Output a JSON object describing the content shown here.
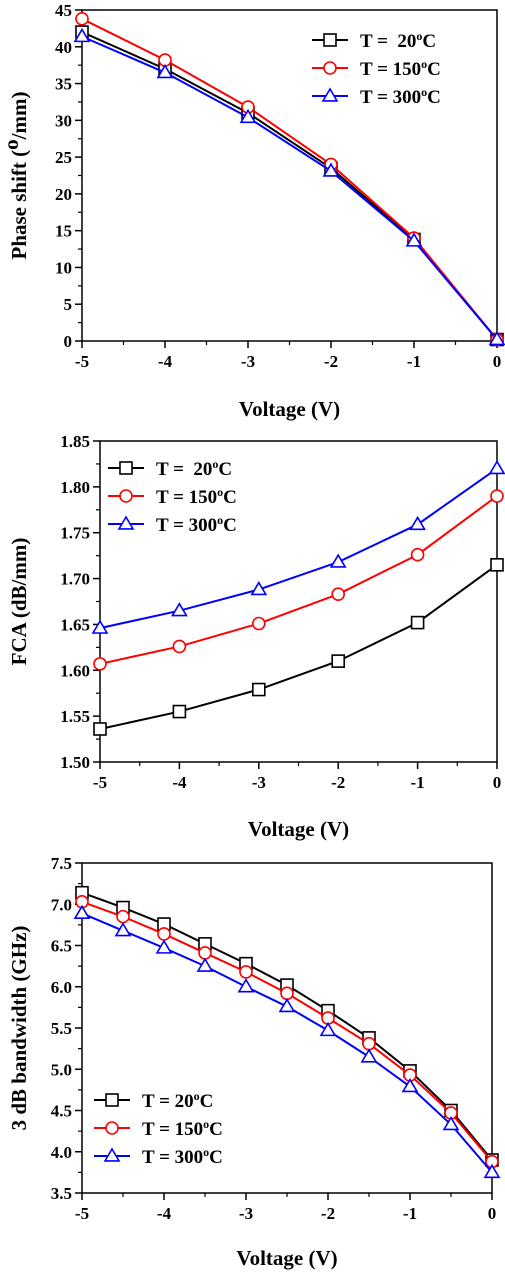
{
  "chart_data": [
    {
      "type": "line",
      "xlabel": "Voltage (V)",
      "ylabel_main": "Phase shift (",
      "ylabel_sup": "o",
      "ylabel_tail": "/mm)",
      "xlim": [
        -5,
        0
      ],
      "ylim": [
        0,
        45
      ],
      "xticks": [
        -5,
        -4,
        -3,
        -2,
        -1,
        0
      ],
      "yticks": [
        0,
        5,
        10,
        15,
        20,
        25,
        30,
        35,
        40,
        45
      ],
      "ytick_decimals": 0,
      "legend_position": "top-right",
      "x": [
        -5,
        -4,
        -3,
        -2,
        -1,
        0
      ],
      "series": [
        {
          "name_main": "T =  20",
          "name_sup": "o",
          "name_tail": "C",
          "color": "#000000",
          "marker": "square",
          "values": [
            42.0,
            37.0,
            31.0,
            23.5,
            13.8,
            0.2
          ]
        },
        {
          "name_main": "T = 150",
          "name_sup": "o",
          "name_tail": "C",
          "color": "#ff0000",
          "marker": "circle",
          "values": [
            43.8,
            38.2,
            31.8,
            24.0,
            14.0,
            0.2
          ]
        },
        {
          "name_main": "T = 300",
          "name_sup": "o",
          "name_tail": "C",
          "color": "#0000ff",
          "marker": "triangle",
          "values": [
            41.4,
            36.5,
            30.4,
            23.1,
            13.6,
            0.2
          ]
        }
      ]
    },
    {
      "type": "line",
      "xlabel": "Voltage (V)",
      "ylabel_main": "FCA (dB/mm)",
      "ylabel_sup": "",
      "ylabel_tail": "",
      "xlim": [
        -5,
        0
      ],
      "ylim": [
        1.5,
        1.85
      ],
      "xticks": [
        -5,
        -4,
        -3,
        -2,
        -1,
        0
      ],
      "yticks": [
        1.5,
        1.55,
        1.6,
        1.65,
        1.7,
        1.75,
        1.8,
        1.85
      ],
      "ytick_decimals": 2,
      "legend_position": "top-left",
      "x": [
        -5,
        -4,
        -3,
        -2,
        -1,
        0
      ],
      "series": [
        {
          "name_main": "T =  20",
          "name_sup": "o",
          "name_tail": "C",
          "color": "#000000",
          "marker": "square",
          "values": [
            1.536,
            1.555,
            1.579,
            1.61,
            1.652,
            1.715
          ]
        },
        {
          "name_main": "T = 150",
          "name_sup": "o",
          "name_tail": "C",
          "color": "#ff0000",
          "marker": "circle",
          "values": [
            1.607,
            1.626,
            1.651,
            1.683,
            1.726,
            1.79
          ]
        },
        {
          "name_main": "T = 300",
          "name_sup": "o",
          "name_tail": "C",
          "color": "#0000ff",
          "marker": "triangle",
          "values": [
            1.646,
            1.665,
            1.688,
            1.718,
            1.759,
            1.82
          ]
        }
      ]
    },
    {
      "type": "line",
      "xlabel": "Voltage (V)",
      "ylabel_main": "3 dB bandwidth (GHz)",
      "ylabel_sup": "",
      "ylabel_tail": "",
      "xlim": [
        -5,
        0
      ],
      "ylim": [
        3.5,
        7.5
      ],
      "xticks": [
        -5,
        -4,
        -3,
        -2,
        -1,
        0
      ],
      "yticks": [
        3.5,
        4.0,
        4.5,
        5.0,
        5.5,
        6.0,
        6.5,
        7.0,
        7.5
      ],
      "ytick_decimals": 1,
      "legend_position": "bottom-left",
      "x": [
        -5,
        -4.5,
        -4,
        -3.5,
        -3,
        -2.5,
        -2,
        -1.5,
        -1,
        -0.5,
        0
      ],
      "series": [
        {
          "name_main": "T = 20",
          "name_sup": "o",
          "name_tail": "C",
          "color": "#000000",
          "marker": "square",
          "values": [
            7.14,
            6.96,
            6.76,
            6.52,
            6.28,
            6.02,
            5.71,
            5.38,
            4.98,
            4.5,
            3.9
          ]
        },
        {
          "name_main": "T = 150",
          "name_sup": "o",
          "name_tail": "C",
          "color": "#ff0000",
          "marker": "circle",
          "values": [
            7.03,
            6.85,
            6.64,
            6.41,
            6.18,
            5.92,
            5.62,
            5.31,
            4.93,
            4.47,
            3.88
          ]
        },
        {
          "name_main": "T = 300",
          "name_sup": "o",
          "name_tail": "C",
          "color": "#0000ff",
          "marker": "triangle",
          "values": [
            6.89,
            6.68,
            6.47,
            6.25,
            6.0,
            5.76,
            5.47,
            5.15,
            4.79,
            4.33,
            3.75
          ]
        }
      ]
    }
  ]
}
